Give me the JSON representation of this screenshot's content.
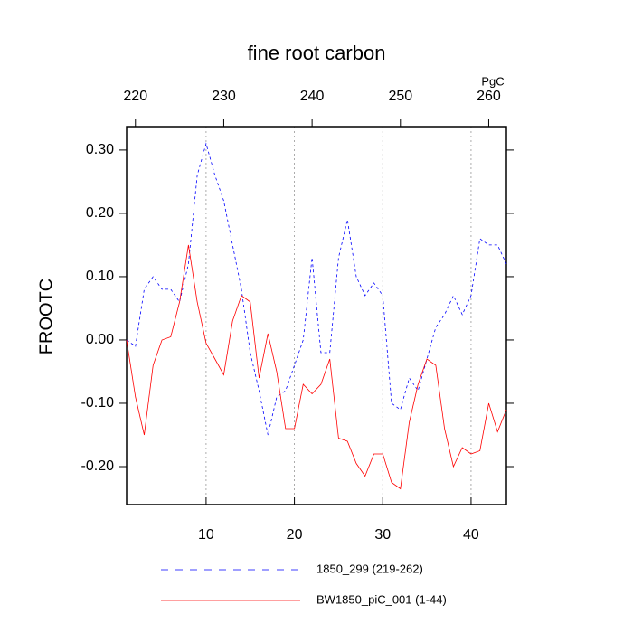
{
  "chart_data": {
    "type": "line",
    "title": "fine root carbon",
    "ylabel": "FROOTC",
    "x2label": "PgC",
    "x": [
      1,
      2,
      3,
      4,
      5,
      6,
      7,
      8,
      9,
      10,
      11,
      12,
      13,
      14,
      15,
      16,
      17,
      18,
      19,
      20,
      21,
      22,
      23,
      24,
      25,
      26,
      27,
      28,
      29,
      30,
      31,
      32,
      33,
      34,
      35,
      36,
      37,
      38,
      39,
      40,
      41,
      42,
      43,
      44
    ],
    "xlim": [
      1,
      44
    ],
    "xticks": [
      10,
      20,
      30,
      40
    ],
    "xaxis_color": "#ff0000",
    "x2lim": [
      219,
      262
    ],
    "x2ticks": [
      220,
      230,
      240,
      250,
      260
    ],
    "x2axis_color": "#0000ff",
    "ylim": [
      -0.26,
      0.337
    ],
    "yticks": [
      {
        "value": -0.2,
        "label": "-0.20"
      },
      {
        "value": -0.1,
        "label": "-0.10"
      },
      {
        "value": 0,
        "label": "0.00"
      },
      {
        "value": 0.1,
        "label": "0.10"
      },
      {
        "value": 0.2,
        "label": "0.20"
      },
      {
        "value": 0.3,
        "label": "0.30"
      }
    ],
    "grid": true,
    "series": [
      {
        "name": "1850_299 (219-262)",
        "color": "#0000ff",
        "dashed": true,
        "values": [
          0.0,
          -0.01,
          0.08,
          0.1,
          0.08,
          0.08,
          0.06,
          0.12,
          0.26,
          0.31,
          0.26,
          0.22,
          0.15,
          0.08,
          -0.02,
          -0.08,
          -0.15,
          -0.09,
          -0.08,
          -0.04,
          0.0,
          0.13,
          -0.02,
          -0.02,
          0.13,
          0.19,
          0.1,
          0.07,
          0.09,
          0.07,
          -0.1,
          -0.11,
          -0.06,
          -0.08,
          -0.03,
          0.02,
          0.04,
          0.07,
          0.04,
          0.07,
          0.16,
          0.15,
          0.15,
          0.12
        ]
      },
      {
        "name": "BW1850_piC_001 (1-44)",
        "color": "#ff0000",
        "dashed": false,
        "values": [
          0.0,
          -0.09,
          -0.15,
          -0.04,
          0.0,
          0.005,
          0.06,
          0.15,
          0.06,
          -0.005,
          -0.03,
          -0.055,
          0.03,
          0.07,
          0.06,
          -0.06,
          0.01,
          -0.05,
          -0.14,
          -0.14,
          -0.07,
          -0.085,
          -0.07,
          -0.03,
          -0.155,
          -0.16,
          -0.195,
          -0.215,
          -0.18,
          -0.18,
          -0.225,
          -0.235,
          -0.13,
          -0.07,
          -0.03,
          -0.04,
          -0.14,
          -0.2,
          -0.17,
          -0.18,
          -0.175,
          -0.1,
          -0.145,
          -0.11
        ]
      }
    ]
  }
}
